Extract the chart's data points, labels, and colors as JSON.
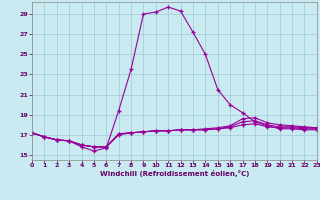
{
  "xlabel": "Windchill (Refroidissement éolien,°C)",
  "background_color": "#c8eaf0",
  "grid_color": "#a0c8d8",
  "line_color": "#990099",
  "xlim": [
    0,
    23
  ],
  "ylim": [
    14.5,
    30.2
  ],
  "yticks": [
    15,
    17,
    19,
    21,
    23,
    25,
    27,
    29
  ],
  "xticks": [
    0,
    1,
    2,
    3,
    4,
    5,
    6,
    7,
    8,
    9,
    10,
    11,
    12,
    13,
    14,
    15,
    16,
    17,
    18,
    19,
    20,
    21,
    22,
    23
  ],
  "line1_x": [
    0,
    1,
    2,
    3,
    4,
    5,
    6,
    7,
    8,
    9,
    10,
    11,
    12,
    13,
    14,
    15,
    16,
    17,
    18,
    19,
    20,
    21,
    22,
    23
  ],
  "line1_y": [
    17.2,
    16.8,
    16.5,
    16.4,
    15.8,
    15.4,
    15.7,
    19.4,
    23.5,
    29.0,
    29.2,
    29.7,
    29.3,
    27.2,
    25.0,
    21.5,
    20.0,
    19.2,
    18.3,
    17.9,
    17.6,
    17.6,
    17.5,
    17.5
  ],
  "line2_x": [
    0,
    1,
    2,
    3,
    4,
    5,
    6,
    7,
    8,
    9,
    10,
    11,
    12,
    13,
    14,
    15,
    16,
    17,
    18,
    19,
    20,
    21,
    22,
    23
  ],
  "line2_y": [
    17.2,
    16.8,
    16.5,
    16.4,
    16.0,
    15.8,
    15.8,
    17.0,
    17.2,
    17.3,
    17.4,
    17.4,
    17.5,
    17.5,
    17.5,
    17.6,
    17.7,
    18.0,
    18.1,
    17.8,
    17.7,
    17.7,
    17.6,
    17.6
  ],
  "line3_x": [
    0,
    1,
    2,
    3,
    4,
    5,
    6,
    7,
    8,
    9,
    10,
    11,
    12,
    13,
    14,
    15,
    16,
    17,
    18,
    19,
    20,
    21,
    22,
    23
  ],
  "line3_y": [
    17.2,
    16.8,
    16.5,
    16.4,
    16.0,
    15.8,
    15.8,
    17.1,
    17.2,
    17.3,
    17.4,
    17.4,
    17.5,
    17.5,
    17.5,
    17.6,
    17.8,
    18.3,
    18.4,
    18.0,
    17.8,
    17.8,
    17.7,
    17.7
  ],
  "line4_x": [
    0,
    1,
    2,
    3,
    4,
    5,
    6,
    7,
    8,
    9,
    10,
    11,
    12,
    13,
    14,
    15,
    16,
    17,
    18,
    19,
    20,
    21,
    22,
    23
  ],
  "line4_y": [
    17.2,
    16.8,
    16.5,
    16.4,
    16.0,
    15.8,
    15.8,
    17.1,
    17.2,
    17.3,
    17.4,
    17.4,
    17.5,
    17.5,
    17.6,
    17.7,
    17.9,
    18.6,
    18.7,
    18.2,
    18.0,
    17.9,
    17.8,
    17.7
  ]
}
